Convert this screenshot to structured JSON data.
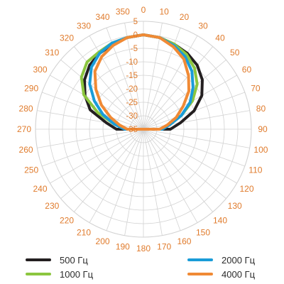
{
  "chart_data": {
    "type": "polar-line",
    "angle_ticks": [
      "0",
      "10",
      "20",
      "30",
      "40",
      "50",
      "60",
      "70",
      "80",
      "90",
      "100",
      "110",
      "120",
      "130",
      "140",
      "150",
      "160",
      "170",
      "180",
      "190",
      "200",
      "210",
      "220",
      "230",
      "240",
      "250",
      "260",
      "270",
      "280",
      "290",
      "300",
      "310",
      "320",
      "330",
      "340",
      "350"
    ],
    "radial_ticks": [
      "5",
      "0",
      "-5",
      "-10",
      "-15",
      "-20",
      "-25",
      "-30",
      "-35"
    ],
    "r_range": [
      -35,
      5
    ],
    "colors": {
      "tick_text": "#e07b2c",
      "grid": "#d2d2d2"
    },
    "series": [
      {
        "name": "500 Гц",
        "color": "#231f20",
        "points": [
          [
            0,
            0
          ],
          [
            10,
            -0.5
          ],
          [
            20,
            -1.5
          ],
          [
            30,
            -2.5
          ],
          [
            40,
            -4
          ],
          [
            50,
            -6.5
          ],
          [
            60,
            -10
          ],
          [
            70,
            -15
          ],
          [
            80,
            -21
          ],
          [
            90,
            -25
          ],
          [
            270,
            -25
          ],
          [
            280,
            -21
          ],
          [
            290,
            -14
          ],
          [
            300,
            -10
          ],
          [
            310,
            -6.5
          ],
          [
            320,
            -4
          ],
          [
            330,
            -2.5
          ],
          [
            340,
            -1.5
          ],
          [
            350,
            -0.5
          ],
          [
            360,
            0
          ]
        ]
      },
      {
        "name": "1000 Гц",
        "color": "#8cc63f",
        "points": [
          [
            0,
            0
          ],
          [
            10,
            -0.5
          ],
          [
            20,
            -1.5
          ],
          [
            30,
            -3
          ],
          [
            40,
            -5.5
          ],
          [
            50,
            -9
          ],
          [
            60,
            -14
          ],
          [
            70,
            -20
          ],
          [
            80,
            -25
          ],
          [
            90,
            -29
          ],
          [
            270,
            -29
          ],
          [
            280,
            -24
          ],
          [
            290,
            -17
          ],
          [
            300,
            -9.5
          ],
          [
            310,
            -5
          ],
          [
            320,
            -2.5
          ],
          [
            330,
            -2
          ],
          [
            340,
            -1
          ],
          [
            350,
            -0.5
          ],
          [
            360,
            0
          ]
        ]
      },
      {
        "name": "2000 Гц",
        "color": "#1a9cd8",
        "points": [
          [
            0,
            0
          ],
          [
            10,
            -0.5
          ],
          [
            20,
            -2
          ],
          [
            30,
            -4
          ],
          [
            40,
            -7
          ],
          [
            50,
            -11
          ],
          [
            60,
            -15
          ],
          [
            70,
            -20
          ],
          [
            80,
            -25
          ],
          [
            90,
            -28
          ],
          [
            270,
            -28
          ],
          [
            280,
            -24
          ],
          [
            290,
            -19
          ],
          [
            300,
            -14
          ],
          [
            310,
            -9
          ],
          [
            320,
            -5
          ],
          [
            330,
            -2.5
          ],
          [
            340,
            -1
          ],
          [
            350,
            -0.5
          ],
          [
            360,
            0
          ]
        ]
      },
      {
        "name": "4000 Гц",
        "color": "#f08a35",
        "points": [
          [
            0,
            0
          ],
          [
            10,
            -0.5
          ],
          [
            20,
            -2.5
          ],
          [
            30,
            -5
          ],
          [
            40,
            -9
          ],
          [
            50,
            -13
          ],
          [
            60,
            -18
          ],
          [
            70,
            -22
          ],
          [
            80,
            -26
          ],
          [
            90,
            -29
          ],
          [
            270,
            -29
          ],
          [
            280,
            -26
          ],
          [
            290,
            -22
          ],
          [
            300,
            -17
          ],
          [
            310,
            -12
          ],
          [
            320,
            -7
          ],
          [
            330,
            -4
          ],
          [
            340,
            -2
          ],
          [
            350,
            -0.5
          ],
          [
            360,
            0
          ]
        ]
      }
    ]
  }
}
